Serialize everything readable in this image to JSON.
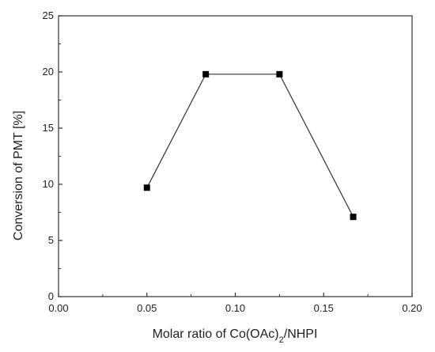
{
  "chart_data": {
    "type": "scatter",
    "line_connected": true,
    "marker": "square",
    "title": "",
    "xlabel": "Molar ratio of Co(OAc)₂/NHPI",
    "xlabel_parts": {
      "pre": "Molar ratio of Co(OAc)",
      "sub": "2",
      "post": "/NHPI"
    },
    "ylabel": "Conversion of PMT [%]",
    "xlim": [
      0.0,
      0.2
    ],
    "ylim": [
      0,
      25
    ],
    "xticks": [
      "0.00",
      "0.05",
      "0.10",
      "0.15",
      "0.20"
    ],
    "yticks": [
      "0",
      "5",
      "10",
      "15",
      "20",
      "25"
    ],
    "grid": false,
    "series": [
      {
        "x": [
          0.05,
          0.0833,
          0.125,
          0.1667
        ],
        "y": [
          9.7,
          19.8,
          19.8,
          7.1
        ]
      }
    ],
    "colors": {
      "line": "#333333",
      "marker": "#000000",
      "axis": "#333333"
    }
  }
}
